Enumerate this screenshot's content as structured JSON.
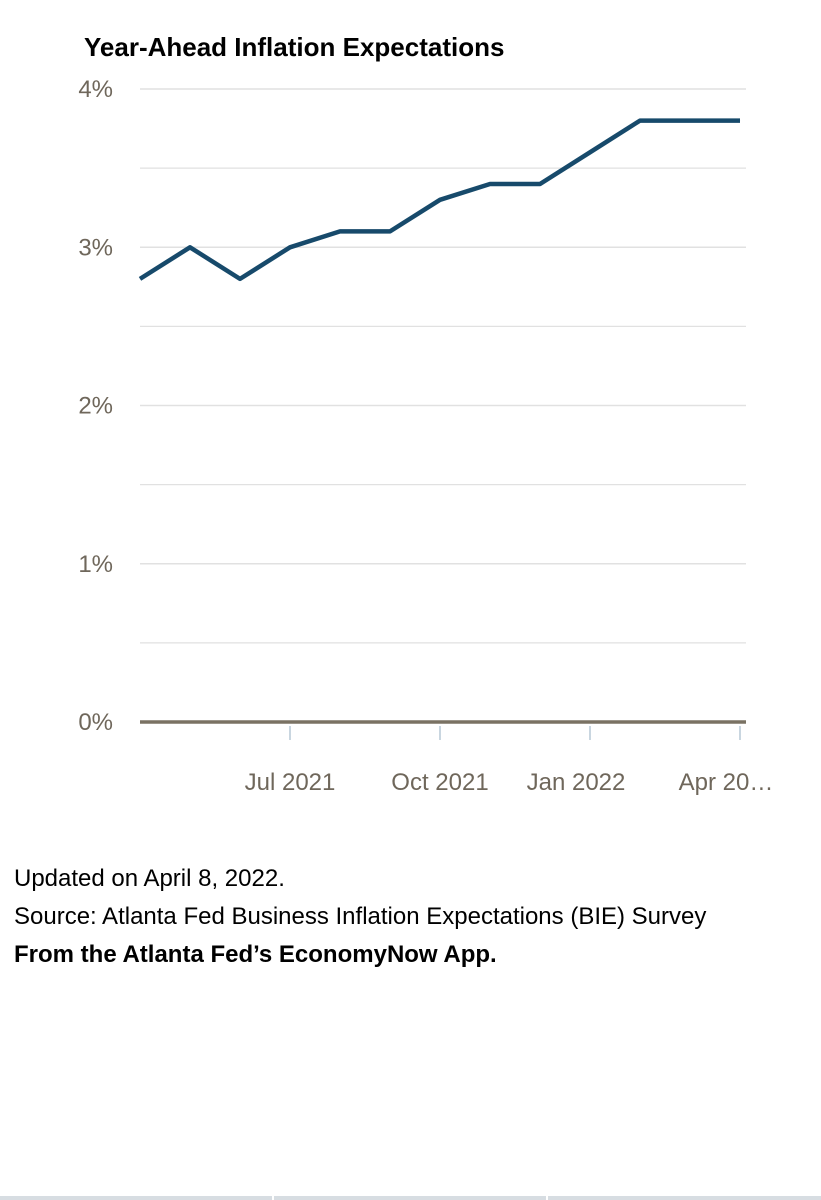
{
  "colors": {
    "line": "#174a6b",
    "grid": "#e1e1e1",
    "baseline": "#7a7263",
    "tick_text": "#6f675b",
    "x_tick": "#c9d6e0"
  },
  "footer": {
    "updated": "Updated on April 8, 2022.",
    "source": "Source: Atlanta Fed Business Inflation Expectations (BIE) Survey",
    "from": "From the Atlanta Fed’s EconomyNow App."
  },
  "chart_data": {
    "type": "line",
    "title": "Year-Ahead Inflation Expectations",
    "xlabel": "",
    "ylabel": "",
    "x": [
      "2021-04",
      "2021-05",
      "2021-06",
      "2021-07",
      "2021-08",
      "2021-09",
      "2021-10",
      "2021-11",
      "2021-12",
      "2022-01",
      "2022-02",
      "2022-03",
      "2022-04"
    ],
    "series": [
      {
        "values": [
          2.8,
          3.0,
          2.8,
          3.0,
          3.1,
          3.1,
          3.3,
          3.4,
          3.4,
          3.6,
          3.8,
          3.8,
          3.8
        ]
      }
    ],
    "ylim": [
      0,
      4
    ],
    "y_ticks": [
      0,
      1,
      2,
      3,
      4
    ],
    "y_tick_labels": [
      "0%",
      "1%",
      "2%",
      "3%",
      "4%"
    ],
    "y_minor_ticks": [
      0.5,
      1.5,
      2.5,
      3.5
    ],
    "x_ticks": [
      "2021-07",
      "2021-10",
      "2022-01",
      "2022-04"
    ],
    "x_tick_labels": [
      "Jul 2021",
      "Oct 2021",
      "Jan 2022",
      "Apr 20…"
    ],
    "grid": true,
    "legend": "none"
  }
}
